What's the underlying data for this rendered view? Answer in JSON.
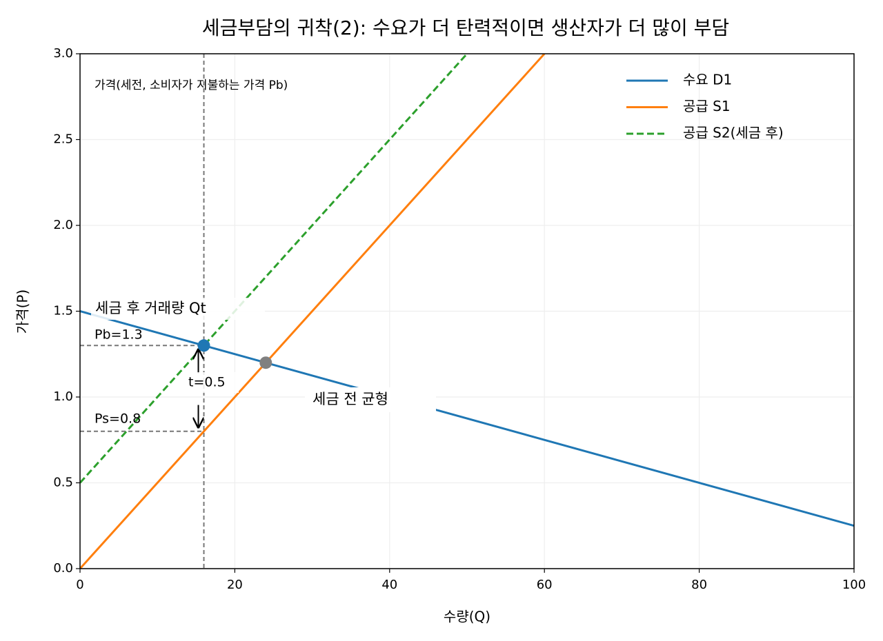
{
  "chart_data": {
    "type": "line",
    "title": "세금부담의 귀착(2): 수요가 더 탄력적이면 생산자가 더 많이 부담",
    "x_label": "수량(Q)",
    "y_label": "가격(P)",
    "xlim": [
      0,
      100
    ],
    "ylim": [
      0,
      3
    ],
    "xticks": [
      0,
      20,
      40,
      60,
      80,
      100
    ],
    "yticks": [
      {
        "value": 0,
        "label": "0.0"
      },
      {
        "value": 0.5,
        "label": "0.5"
      },
      {
        "value": 1,
        "label": "1.0"
      },
      {
        "value": 1.5,
        "label": "1.5"
      },
      {
        "value": 2,
        "label": "2.0"
      },
      {
        "value": 2.5,
        "label": "2.5"
      },
      {
        "value": 3,
        "label": "3.0"
      }
    ],
    "grid": true,
    "legend": "upper right",
    "series": [
      {
        "name": "수요 D1",
        "color": "#1f77b4",
        "style": "solid",
        "x": [
          0,
          100
        ],
        "values": [
          1.5,
          0.25
        ]
      },
      {
        "name": "공급 S1",
        "color": "#ff7f0e",
        "style": "solid",
        "x": [
          0,
          60
        ],
        "values": [
          0,
          3
        ]
      },
      {
        "name": "공급 S2(세금 후)",
        "color": "#2ca02c",
        "style": "dashed",
        "x": [
          0,
          50
        ],
        "values": [
          0.5,
          3
        ]
      }
    ],
    "points": [
      {
        "x": 16,
        "y": 1.3,
        "color": "#1f77b4"
      },
      {
        "x": 24,
        "y": 1.2,
        "color": "#808080"
      }
    ],
    "reference_lines": {
      "x": 16,
      "y": [
        1.3,
        0.8
      ]
    },
    "annotations": {
      "price_note": "가격(세전, 소비자가 지불하는 가격 Pb)",
      "quantity_note": "세금 후 거래량 Qt",
      "pb": "Pb=1.3",
      "tax": "t=0.5",
      "ps": "Ps=0.8",
      "equilibrium": "세금 전 균형"
    }
  }
}
